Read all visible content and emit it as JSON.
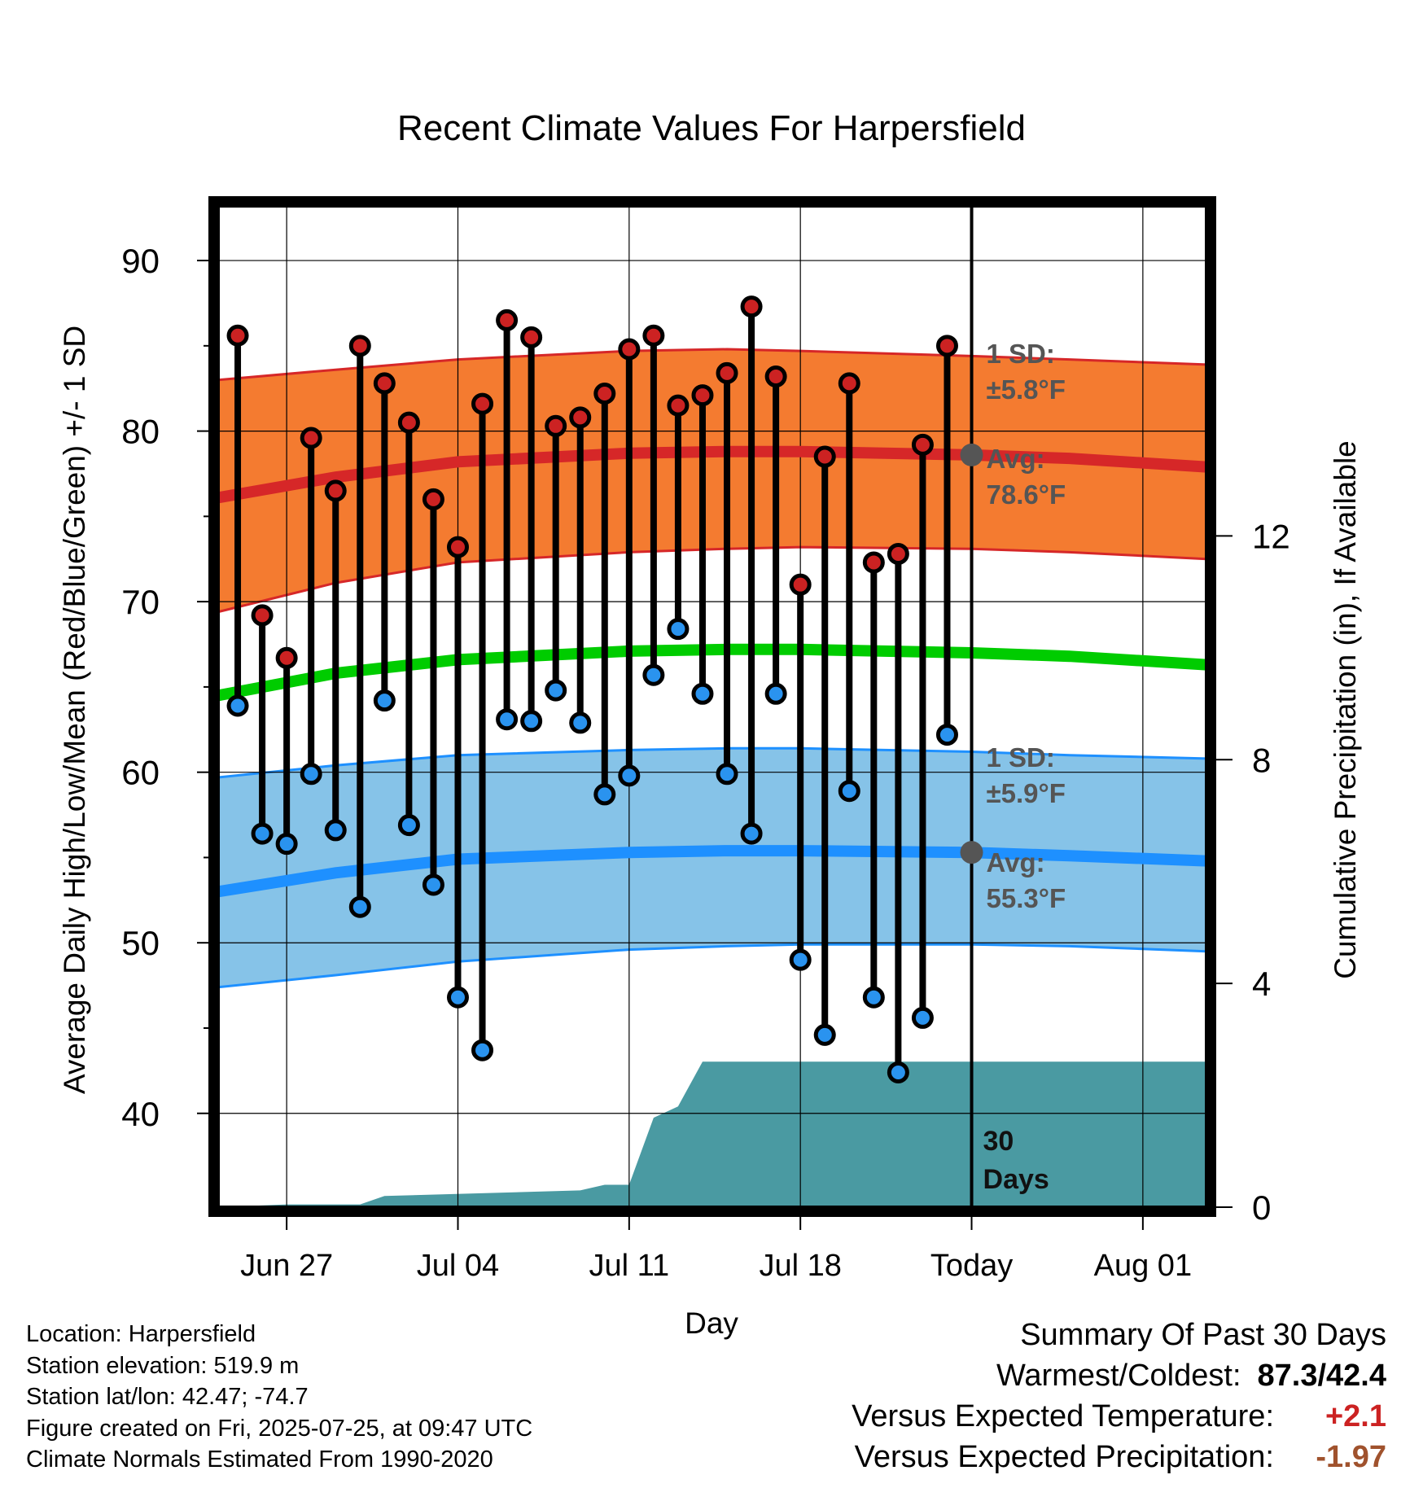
{
  "chart_data": {
    "type": "dumbbell",
    "title": "Recent Climate Values For Harpersfield",
    "xlabel": "Day",
    "ylabel_left": "Average Daily High/Low/Mean (Red/Blue/Green) +/- 1 SD",
    "ylabel_right": "Cumulative Precipitation (in), If Available",
    "ylim_left": [
      34.5,
      93.2
    ],
    "ylim_right": [
      0,
      17.9
    ],
    "yticks_left": [
      40,
      50,
      60,
      70,
      80,
      90
    ],
    "yticks_right": [
      0,
      4,
      8,
      12
    ],
    "x_day_range": [
      -2.8,
      37.6
    ],
    "x_ticks": [
      {
        "label": "Jun 27",
        "day": 0
      },
      {
        "label": "Jul 04",
        "day": 7
      },
      {
        "label": "Jul 11",
        "day": 14
      },
      {
        "label": "Jul 18",
        "day": 21
      },
      {
        "label": "Today",
        "day": 28
      },
      {
        "label": "Aug 01",
        "day": 35
      }
    ],
    "daily_start_day": -2,
    "daily_highs": [
      85.6,
      69.2,
      66.7,
      79.6,
      76.5,
      85.0,
      82.8,
      80.5,
      76.0,
      73.2,
      81.6,
      86.5,
      85.5,
      80.3,
      80.8,
      82.2,
      84.8,
      85.6,
      81.5,
      82.1,
      83.4,
      87.3,
      83.2,
      71.0,
      78.5,
      82.8,
      72.3,
      72.8,
      79.2,
      85.0
    ],
    "daily_lows": [
      63.9,
      56.4,
      55.8,
      59.9,
      56.6,
      52.1,
      64.2,
      56.9,
      53.4,
      46.8,
      43.7,
      63.1,
      63.0,
      64.8,
      62.9,
      58.7,
      59.8,
      65.7,
      68.4,
      64.6,
      59.9,
      56.4,
      64.6,
      49.0,
      44.6,
      58.9,
      46.8,
      42.4,
      45.6,
      62.2
    ],
    "normals": {
      "days": [
        -2.8,
        2,
        7,
        14,
        18,
        21,
        28,
        32,
        37.6
      ],
      "high_avg": [
        76.1,
        77.3,
        78.2,
        78.7,
        78.8,
        78.8,
        78.6,
        78.4,
        77.9
      ],
      "high_sd_upper": [
        83.0,
        83.6,
        84.2,
        84.7,
        84.8,
        84.7,
        84.4,
        84.2,
        83.9
      ],
      "high_sd_lower": [
        69.4,
        71.1,
        72.3,
        72.9,
        73.1,
        73.2,
        73.1,
        72.9,
        72.5
      ],
      "mean_avg": [
        64.5,
        65.8,
        66.6,
        67.1,
        67.2,
        67.2,
        67.0,
        66.8,
        66.3
      ],
      "low_avg": [
        53.0,
        54.1,
        54.9,
        55.3,
        55.4,
        55.4,
        55.3,
        55.1,
        54.8
      ],
      "low_sd_upper": [
        59.7,
        60.4,
        61.0,
        61.3,
        61.4,
        61.4,
        61.2,
        61.0,
        60.8
      ],
      "low_sd_lower": [
        47.4,
        48.1,
        48.9,
        49.6,
        49.8,
        49.9,
        49.9,
        49.8,
        49.5
      ]
    },
    "precip_cumulative": {
      "days": [
        -2.8,
        0,
        3,
        4,
        12,
        13,
        14,
        15,
        16,
        17,
        37.6
      ],
      "values": [
        0.0,
        0.05,
        0.05,
        0.2,
        0.3,
        0.4,
        0.4,
        1.6,
        1.8,
        2.6,
        2.6
      ]
    },
    "annotations": {
      "high_sd_label": "1 SD:",
      "high_sd_value": "±5.8°F",
      "high_avg_label": "Avg:",
      "high_avg_value": "78.6°F",
      "low_sd_label": "1 SD:",
      "low_sd_value": "±5.9°F",
      "low_avg_label": "Avg:",
      "low_avg_value": "55.3°F",
      "days_count": "30",
      "days_word": "Days"
    },
    "colors": {
      "high_band": "#f47b30",
      "high_line": "#d62728",
      "low_band": "#86c3e8",
      "low_line": "#1e90ff",
      "mean_line": "#00cc00",
      "precip_fill": "#4a9aa2",
      "high_dot": "#cc2222",
      "low_dot": "#2a93ef",
      "today_marker": "#555555",
      "annotation_text": "#555555"
    },
    "grid": true
  },
  "footer": {
    "location": "Location: Harpersfield",
    "elevation": "Station elevation: 519.9 m",
    "latlon": "Station lat/lon: 42.47; -74.7",
    "created": "Figure created on Fri, 2025-07-25, at 09:47 UTC",
    "normals": "Climate Normals Estimated From 1990-2020"
  },
  "summary": {
    "heading": "Summary Of Past 30 Days",
    "warmest_label": "Warmest/Coldest:",
    "warmest_value": "87.3/42.4",
    "temp_label": "Versus Expected Temperature:",
    "temp_value": "+2.1",
    "temp_color": "#cc2222",
    "precip_label": "Versus Expected Precipitation:",
    "precip_value": "-1.97",
    "precip_color": "#a0522d"
  }
}
